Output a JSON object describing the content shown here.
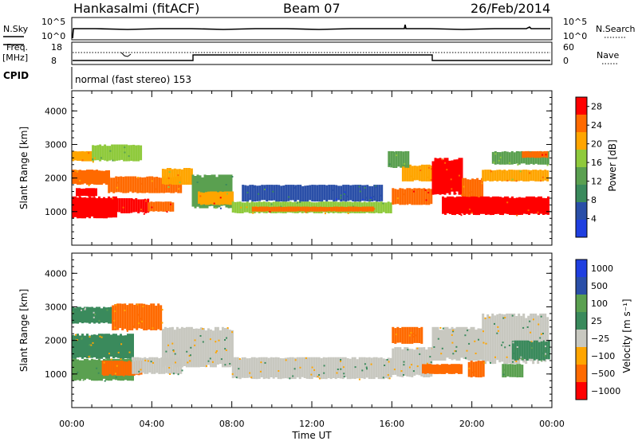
{
  "header": {
    "station": "Hankasalmi (fitACF)",
    "beam": "Beam 07",
    "date": "26/Feb/2014"
  },
  "noise_panel": {
    "left_label": "N.Sky",
    "right_label": "N.Search",
    "left_ticks": [
      "10^5",
      "10^0"
    ],
    "right_ticks": [
      "10^5",
      "10^0"
    ]
  },
  "freq_panel": {
    "left_label_line1": "Freq.",
    "left_label_line2": "[MHz]",
    "right_label": "Nave",
    "left_ticks": [
      "18",
      "8"
    ],
    "right_ticks": [
      "60",
      "0"
    ]
  },
  "cpid": {
    "label": "CPID",
    "text": "normal (fast stereo) 153"
  },
  "time_axis": {
    "label": "Time UT",
    "ticks": [
      "00:00",
      "04:00",
      "08:00",
      "12:00",
      "16:00",
      "20:00",
      "00:00"
    ]
  },
  "power_panel": {
    "ylabel": "Slant Range [km]",
    "yticks": [
      "1000",
      "2000",
      "3000",
      "4000"
    ],
    "colorbar_label": "Power [dB]",
    "colorbar_ticks": [
      "4",
      "8",
      "12",
      "16",
      "20",
      "24",
      "28"
    ]
  },
  "velocity_panel": {
    "ylabel": "Slant Range [km]",
    "yticks": [
      "1000",
      "2000",
      "3000",
      "4000"
    ],
    "colorbar_label": "Velocity [m s⁻¹]",
    "colorbar_ticks": [
      "1000",
      "500",
      "100",
      "25",
      "−25",
      "−100",
      "−500",
      "−1000"
    ]
  },
  "chart_data": [
    {
      "type": "heatmap",
      "name": "Power",
      "x": {
        "unit": "hours UT",
        "range": [
          0,
          24
        ]
      },
      "y": {
        "unit": "km",
        "range": [
          0,
          4600
        ]
      },
      "value_range": [
        0,
        30
      ],
      "colors": [
        "#1f3fe0",
        "#2a4fa8",
        "#3a8a5c",
        "#5aa050",
        "#8fca3c",
        "#ffa500",
        "#ff6a00",
        "#ff0000"
      ],
      "regions": [
        {
          "t": [
            0,
            2.2
          ],
          "r": [
            800,
            1450
          ],
          "v": 29
        },
        {
          "t": [
            0.2,
            1.2
          ],
          "r": [
            1450,
            1700
          ],
          "v": 27
        },
        {
          "t": [
            2.2,
            3.8
          ],
          "r": [
            950,
            1400
          ],
          "v": 27
        },
        {
          "t": [
            3.8,
            5.0
          ],
          "r": [
            1000,
            1300
          ],
          "v": 26
        },
        {
          "t": [
            0,
            1.8
          ],
          "r": [
            1800,
            2250
          ],
          "v": 24
        },
        {
          "t": [
            1.8,
            5.5
          ],
          "r": [
            1550,
            2050
          ],
          "v": 23
        },
        {
          "t": [
            0,
            1.0
          ],
          "r": [
            2500,
            2800
          ],
          "v": 22
        },
        {
          "t": [
            1.0,
            3.5
          ],
          "r": [
            2500,
            3000
          ],
          "v": 16
        },
        {
          "t": [
            4.5,
            6.0
          ],
          "r": [
            1800,
            2300
          ],
          "v": 20
        },
        {
          "t": [
            6.0,
            8.0
          ],
          "r": [
            1100,
            2100
          ],
          "v": 12
        },
        {
          "t": [
            6.3,
            8.0
          ],
          "r": [
            1200,
            1600
          ],
          "v": 22
        },
        {
          "t": [
            8.0,
            16.0
          ],
          "r": [
            950,
            1300
          ],
          "v": 18
        },
        {
          "t": [
            8.5,
            15.5
          ],
          "r": [
            1300,
            1800
          ],
          "v": 7
        },
        {
          "t": [
            9.0,
            15.0
          ],
          "r": [
            1000,
            1150
          ],
          "v": 24
        },
        {
          "t": [
            16.0,
            18.0
          ],
          "r": [
            1200,
            1700
          ],
          "v": 25
        },
        {
          "t": [
            16.5,
            18.0
          ],
          "r": [
            1900,
            2400
          ],
          "v": 22
        },
        {
          "t": [
            15.8,
            16.8
          ],
          "r": [
            2300,
            2800
          ],
          "v": 12
        },
        {
          "t": [
            18.0,
            19.5
          ],
          "r": [
            1500,
            2600
          ],
          "v": 28
        },
        {
          "t": [
            19.5,
            20.5
          ],
          "r": [
            1400,
            2000
          ],
          "v": 24
        },
        {
          "t": [
            18.5,
            23.8
          ],
          "r": [
            900,
            1450
          ],
          "v": 29
        },
        {
          "t": [
            20.5,
            23.8
          ],
          "r": [
            1900,
            2250
          ],
          "v": 20
        },
        {
          "t": [
            21.0,
            23.8
          ],
          "r": [
            2400,
            2800
          ],
          "v": 14
        },
        {
          "t": [
            22.5,
            23.8
          ],
          "r": [
            2600,
            2800
          ],
          "v": 26
        }
      ]
    },
    {
      "type": "heatmap",
      "name": "Velocity",
      "x": {
        "unit": "hours UT",
        "range": [
          0,
          24
        ]
      },
      "y": {
        "unit": "km",
        "range": [
          0,
          4600
        ]
      },
      "value_range": [
        -1000,
        1000
      ],
      "colors": [
        "#ff0000",
        "#ff6a00",
        "#ffa500",
        "#c8c8c0",
        "#3a8a5c",
        "#5aa050",
        "#2a4fa8",
        "#1f3fe0"
      ],
      "regions": [
        {
          "t": [
            0,
            3.0
          ],
          "r": [
            800,
            1450
          ],
          "v": 150
        },
        {
          "t": [
            0,
            3.0
          ],
          "r": [
            1450,
            2200
          ],
          "v": 30
        },
        {
          "t": [
            1.5,
            3.5
          ],
          "r": [
            950,
            1400
          ],
          "v": -150
        },
        {
          "t": [
            3.0,
            5.5
          ],
          "r": [
            1000,
            1500
          ],
          "v": 0
        },
        {
          "t": [
            0,
            2.0
          ],
          "r": [
            2500,
            3000
          ],
          "v": 60
        },
        {
          "t": [
            2.0,
            4.5
          ],
          "r": [
            2300,
            3100
          ],
          "v": -150
        },
        {
          "t": [
            4.5,
            8.0
          ],
          "r": [
            1200,
            2400
          ],
          "v": 0
        },
        {
          "t": [
            8.0,
            16.0
          ],
          "r": [
            850,
            1500
          ],
          "v": 0
        },
        {
          "t": [
            16.0,
            18.0
          ],
          "r": [
            900,
            1800
          ],
          "v": 0
        },
        {
          "t": [
            16.0,
            17.5
          ],
          "r": [
            1900,
            2400
          ],
          "v": -150
        },
        {
          "t": [
            17.5,
            19.5
          ],
          "r": [
            1000,
            1300
          ],
          "v": -400
        },
        {
          "t": [
            18.0,
            20.5
          ],
          "r": [
            1400,
            2400
          ],
          "v": 0
        },
        {
          "t": [
            20.5,
            23.8
          ],
          "r": [
            1300,
            2800
          ],
          "v": 0
        },
        {
          "t": [
            21.5,
            22.5
          ],
          "r": [
            900,
            1300
          ],
          "v": 150
        },
        {
          "t": [
            22.0,
            23.8
          ],
          "r": [
            1400,
            2000
          ],
          "v": 60
        },
        {
          "t": [
            19.8,
            20.6
          ],
          "r": [
            900,
            1400
          ],
          "v": -150
        }
      ]
    }
  ]
}
